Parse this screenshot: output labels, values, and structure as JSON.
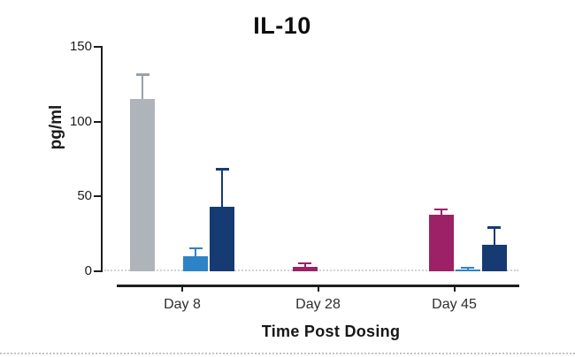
{
  "chart_data": {
    "type": "bar",
    "title": "IL-10",
    "xlabel": "Time Post Dosing",
    "ylabel": "pg/ml",
    "ylim": [
      0,
      150
    ],
    "yticks": [
      0,
      50,
      100,
      150
    ],
    "categories": [
      "Day 8",
      "Day 28",
      "Day 45"
    ],
    "series": [
      {
        "name": "gray",
        "color": "#aeb4b9",
        "error_color": "#9aa1a7",
        "values": [
          115,
          null,
          null
        ],
        "error_high": [
          132,
          null,
          null
        ]
      },
      {
        "name": "magenta",
        "color": "#9c2166",
        "error_color": "#9c2166",
        "values": [
          null,
          3,
          38
        ],
        "error_high": [
          null,
          6,
          42
        ]
      },
      {
        "name": "light-blue",
        "color": "#2d83c7",
        "error_color": "#2d83c7",
        "values": [
          10,
          null,
          1
        ],
        "error_high": [
          16,
          null,
          3
        ]
      },
      {
        "name": "navy",
        "color": "#163b72",
        "error_color": "#163b72",
        "values": [
          43,
          null,
          18
        ],
        "error_high": [
          69,
          null,
          30
        ]
      }
    ],
    "legend": "none",
    "grid": "none",
    "zero_baseline_style": "dotted"
  }
}
